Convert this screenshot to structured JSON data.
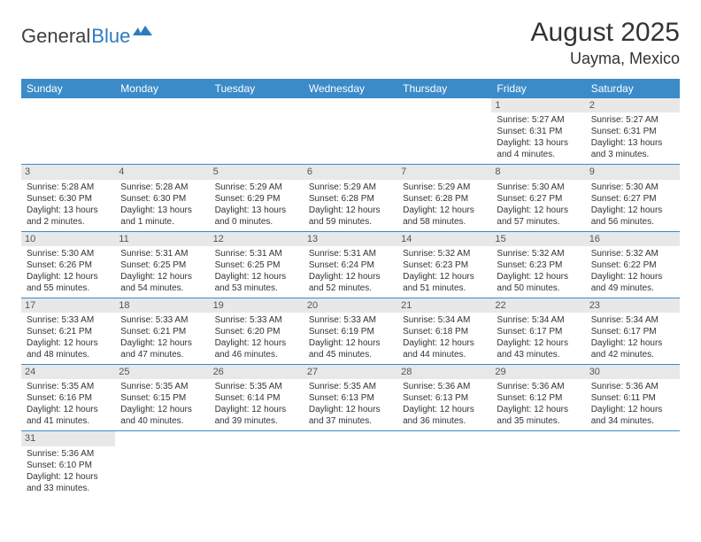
{
  "logo": {
    "part1": "General",
    "part2": "Blue"
  },
  "title": "August 2025",
  "location": "Uayma, Mexico",
  "colors": {
    "header_bg": "#3b8bc9",
    "header_fg": "#ffffff",
    "daynum_bg": "#e8e8e8",
    "rule": "#3b8bc9",
    "logo_accent": "#2f7abf"
  },
  "daynames": [
    "Sunday",
    "Monday",
    "Tuesday",
    "Wednesday",
    "Thursday",
    "Friday",
    "Saturday"
  ],
  "weeks": [
    [
      {
        "n": "",
        "sr": "",
        "ss": "",
        "dl": ""
      },
      {
        "n": "",
        "sr": "",
        "ss": "",
        "dl": ""
      },
      {
        "n": "",
        "sr": "",
        "ss": "",
        "dl": ""
      },
      {
        "n": "",
        "sr": "",
        "ss": "",
        "dl": ""
      },
      {
        "n": "",
        "sr": "",
        "ss": "",
        "dl": ""
      },
      {
        "n": "1",
        "sr": "Sunrise: 5:27 AM",
        "ss": "Sunset: 6:31 PM",
        "dl": "Daylight: 13 hours and 4 minutes."
      },
      {
        "n": "2",
        "sr": "Sunrise: 5:27 AM",
        "ss": "Sunset: 6:31 PM",
        "dl": "Daylight: 13 hours and 3 minutes."
      }
    ],
    [
      {
        "n": "3",
        "sr": "Sunrise: 5:28 AM",
        "ss": "Sunset: 6:30 PM",
        "dl": "Daylight: 13 hours and 2 minutes."
      },
      {
        "n": "4",
        "sr": "Sunrise: 5:28 AM",
        "ss": "Sunset: 6:30 PM",
        "dl": "Daylight: 13 hours and 1 minute."
      },
      {
        "n": "5",
        "sr": "Sunrise: 5:29 AM",
        "ss": "Sunset: 6:29 PM",
        "dl": "Daylight: 13 hours and 0 minutes."
      },
      {
        "n": "6",
        "sr": "Sunrise: 5:29 AM",
        "ss": "Sunset: 6:28 PM",
        "dl": "Daylight: 12 hours and 59 minutes."
      },
      {
        "n": "7",
        "sr": "Sunrise: 5:29 AM",
        "ss": "Sunset: 6:28 PM",
        "dl": "Daylight: 12 hours and 58 minutes."
      },
      {
        "n": "8",
        "sr": "Sunrise: 5:30 AM",
        "ss": "Sunset: 6:27 PM",
        "dl": "Daylight: 12 hours and 57 minutes."
      },
      {
        "n": "9",
        "sr": "Sunrise: 5:30 AM",
        "ss": "Sunset: 6:27 PM",
        "dl": "Daylight: 12 hours and 56 minutes."
      }
    ],
    [
      {
        "n": "10",
        "sr": "Sunrise: 5:30 AM",
        "ss": "Sunset: 6:26 PM",
        "dl": "Daylight: 12 hours and 55 minutes."
      },
      {
        "n": "11",
        "sr": "Sunrise: 5:31 AM",
        "ss": "Sunset: 6:25 PM",
        "dl": "Daylight: 12 hours and 54 minutes."
      },
      {
        "n": "12",
        "sr": "Sunrise: 5:31 AM",
        "ss": "Sunset: 6:25 PM",
        "dl": "Daylight: 12 hours and 53 minutes."
      },
      {
        "n": "13",
        "sr": "Sunrise: 5:31 AM",
        "ss": "Sunset: 6:24 PM",
        "dl": "Daylight: 12 hours and 52 minutes."
      },
      {
        "n": "14",
        "sr": "Sunrise: 5:32 AM",
        "ss": "Sunset: 6:23 PM",
        "dl": "Daylight: 12 hours and 51 minutes."
      },
      {
        "n": "15",
        "sr": "Sunrise: 5:32 AM",
        "ss": "Sunset: 6:23 PM",
        "dl": "Daylight: 12 hours and 50 minutes."
      },
      {
        "n": "16",
        "sr": "Sunrise: 5:32 AM",
        "ss": "Sunset: 6:22 PM",
        "dl": "Daylight: 12 hours and 49 minutes."
      }
    ],
    [
      {
        "n": "17",
        "sr": "Sunrise: 5:33 AM",
        "ss": "Sunset: 6:21 PM",
        "dl": "Daylight: 12 hours and 48 minutes."
      },
      {
        "n": "18",
        "sr": "Sunrise: 5:33 AM",
        "ss": "Sunset: 6:21 PM",
        "dl": "Daylight: 12 hours and 47 minutes."
      },
      {
        "n": "19",
        "sr": "Sunrise: 5:33 AM",
        "ss": "Sunset: 6:20 PM",
        "dl": "Daylight: 12 hours and 46 minutes."
      },
      {
        "n": "20",
        "sr": "Sunrise: 5:33 AM",
        "ss": "Sunset: 6:19 PM",
        "dl": "Daylight: 12 hours and 45 minutes."
      },
      {
        "n": "21",
        "sr": "Sunrise: 5:34 AM",
        "ss": "Sunset: 6:18 PM",
        "dl": "Daylight: 12 hours and 44 minutes."
      },
      {
        "n": "22",
        "sr": "Sunrise: 5:34 AM",
        "ss": "Sunset: 6:17 PM",
        "dl": "Daylight: 12 hours and 43 minutes."
      },
      {
        "n": "23",
        "sr": "Sunrise: 5:34 AM",
        "ss": "Sunset: 6:17 PM",
        "dl": "Daylight: 12 hours and 42 minutes."
      }
    ],
    [
      {
        "n": "24",
        "sr": "Sunrise: 5:35 AM",
        "ss": "Sunset: 6:16 PM",
        "dl": "Daylight: 12 hours and 41 minutes."
      },
      {
        "n": "25",
        "sr": "Sunrise: 5:35 AM",
        "ss": "Sunset: 6:15 PM",
        "dl": "Daylight: 12 hours and 40 minutes."
      },
      {
        "n": "26",
        "sr": "Sunrise: 5:35 AM",
        "ss": "Sunset: 6:14 PM",
        "dl": "Daylight: 12 hours and 39 minutes."
      },
      {
        "n": "27",
        "sr": "Sunrise: 5:35 AM",
        "ss": "Sunset: 6:13 PM",
        "dl": "Daylight: 12 hours and 37 minutes."
      },
      {
        "n": "28",
        "sr": "Sunrise: 5:36 AM",
        "ss": "Sunset: 6:13 PM",
        "dl": "Daylight: 12 hours and 36 minutes."
      },
      {
        "n": "29",
        "sr": "Sunrise: 5:36 AM",
        "ss": "Sunset: 6:12 PM",
        "dl": "Daylight: 12 hours and 35 minutes."
      },
      {
        "n": "30",
        "sr": "Sunrise: 5:36 AM",
        "ss": "Sunset: 6:11 PM",
        "dl": "Daylight: 12 hours and 34 minutes."
      }
    ],
    [
      {
        "n": "31",
        "sr": "Sunrise: 5:36 AM",
        "ss": "Sunset: 6:10 PM",
        "dl": "Daylight: 12 hours and 33 minutes."
      },
      {
        "n": "",
        "sr": "",
        "ss": "",
        "dl": ""
      },
      {
        "n": "",
        "sr": "",
        "ss": "",
        "dl": ""
      },
      {
        "n": "",
        "sr": "",
        "ss": "",
        "dl": ""
      },
      {
        "n": "",
        "sr": "",
        "ss": "",
        "dl": ""
      },
      {
        "n": "",
        "sr": "",
        "ss": "",
        "dl": ""
      },
      {
        "n": "",
        "sr": "",
        "ss": "",
        "dl": ""
      }
    ]
  ]
}
